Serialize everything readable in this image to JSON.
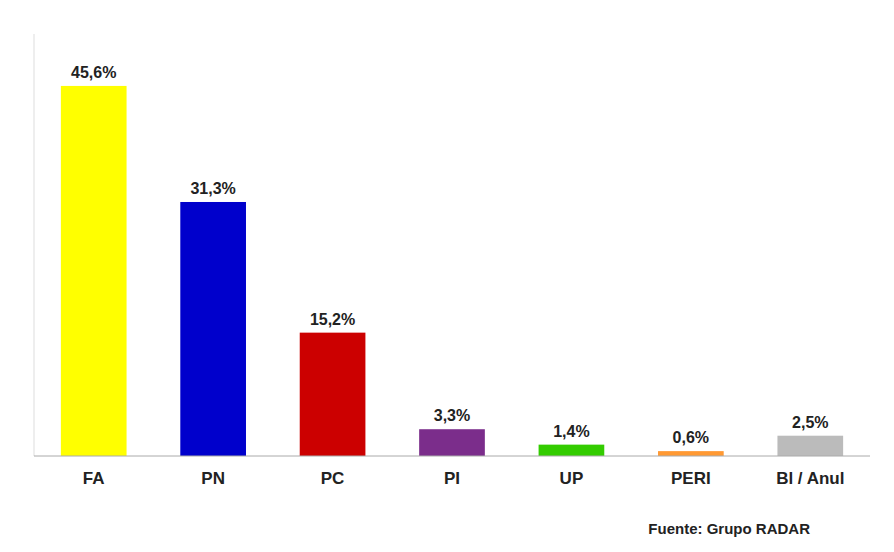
{
  "chart_data": {
    "type": "bar",
    "categories": [
      "FA",
      "PN",
      "PC",
      "PI",
      "UP",
      "PERI",
      "Bl / Anul"
    ],
    "values": [
      45.6,
      31.3,
      15.2,
      3.3,
      1.4,
      0.6,
      2.5
    ],
    "value_labels": [
      "45,6%",
      "31,3%",
      "15,2%",
      "3,3%",
      "1,4%",
      "0,6%",
      "2,5%"
    ],
    "data_labels": true,
    "colors": [
      "#FFFF00",
      "#0000CC",
      "#CC0000",
      "#7B2D8B",
      "#33CC00",
      "#FF9933",
      "#BBBBBB"
    ],
    "ylim": [
      0,
      52
    ],
    "grid": false,
    "tick_labels": "x",
    "annotations": [
      "Fuente: Grupo RADAR"
    ]
  }
}
